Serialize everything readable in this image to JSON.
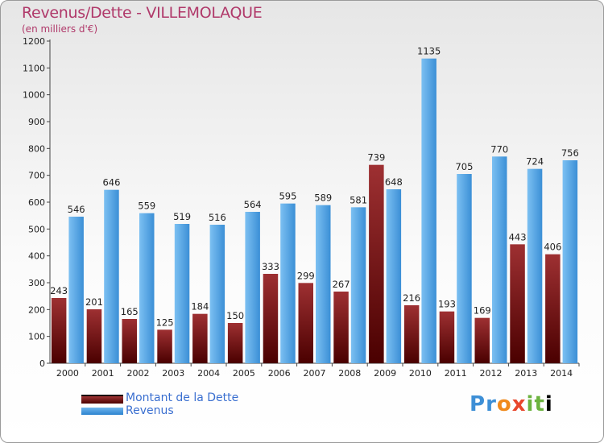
{
  "title": "Revenus/Dette - VILLEMOLAQUE",
  "subtitle": "(en milliers d'€)",
  "colors": {
    "dette": "#6b0f10",
    "revenus": "#4fa3e6",
    "title": "#b0396a"
  },
  "legend": {
    "dette": "Montant de la Dette",
    "revenus": "Revenus"
  },
  "logo": "Proxiti",
  "chart_data": {
    "type": "bar",
    "categories": [
      "2000",
      "2001",
      "2002",
      "2003",
      "2004",
      "2005",
      "2006",
      "2007",
      "2008",
      "2009",
      "2010",
      "2011",
      "2012",
      "2013",
      "2014"
    ],
    "series": [
      {
        "name": "Montant de la Dette",
        "values": [
          243,
          201,
          165,
          125,
          184,
          150,
          333,
          299,
          267,
          739,
          216,
          193,
          169,
          443,
          406
        ]
      },
      {
        "name": "Revenus",
        "values": [
          546,
          646,
          559,
          519,
          516,
          564,
          595,
          589,
          581,
          648,
          1135,
          705,
          770,
          724,
          756
        ]
      }
    ],
    "value_labels": {
      "Montant de la Dette": [
        "243",
        "201",
        "165",
        "125",
        "184",
        "150",
        "333",
        "299",
        "267",
        "739",
        "216",
        "193",
        "169",
        "443",
        "406"
      ],
      "Revenus": [
        "546",
        "646",
        "559",
        "519",
        "516",
        "564",
        "595",
        "589",
        "581",
        "648",
        "1135",
        "705",
        "770",
        "724",
        "756"
      ]
    },
    "yticks": [
      "0",
      "100",
      "200",
      "300",
      "400",
      "500",
      "600",
      "700",
      "800",
      "900",
      "1000",
      "1100",
      "1200"
    ],
    "ylim": [
      0,
      1200
    ],
    "grid": false,
    "legend_position": "bottom-left"
  }
}
